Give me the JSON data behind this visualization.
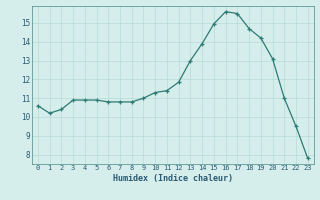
{
  "x": [
    0,
    1,
    2,
    3,
    4,
    5,
    6,
    7,
    8,
    9,
    10,
    11,
    12,
    13,
    14,
    15,
    16,
    17,
    18,
    19,
    20,
    21,
    22,
    23
  ],
  "y": [
    10.6,
    10.2,
    10.4,
    10.9,
    10.9,
    10.9,
    10.8,
    10.8,
    10.8,
    11.0,
    11.3,
    11.4,
    11.85,
    13.0,
    13.9,
    14.95,
    15.6,
    15.5,
    14.7,
    14.2,
    13.1,
    11.0,
    9.5,
    7.8
  ],
  "xlabel": "Humidex (Indice chaleur)",
  "xlim": [
    -0.5,
    23.5
  ],
  "ylim": [
    7.5,
    15.9
  ],
  "yticks": [
    8,
    9,
    10,
    11,
    12,
    13,
    14,
    15
  ],
  "xticks": [
    0,
    1,
    2,
    3,
    4,
    5,
    6,
    7,
    8,
    9,
    10,
    11,
    12,
    13,
    14,
    15,
    16,
    17,
    18,
    19,
    20,
    21,
    22,
    23
  ],
  "line_color": "#2d7b73",
  "bg_color": "#d5eeec",
  "grid_color": "#b8dbd8",
  "text_color": "#2a5a72",
  "spine_color": "#4a8a87"
}
